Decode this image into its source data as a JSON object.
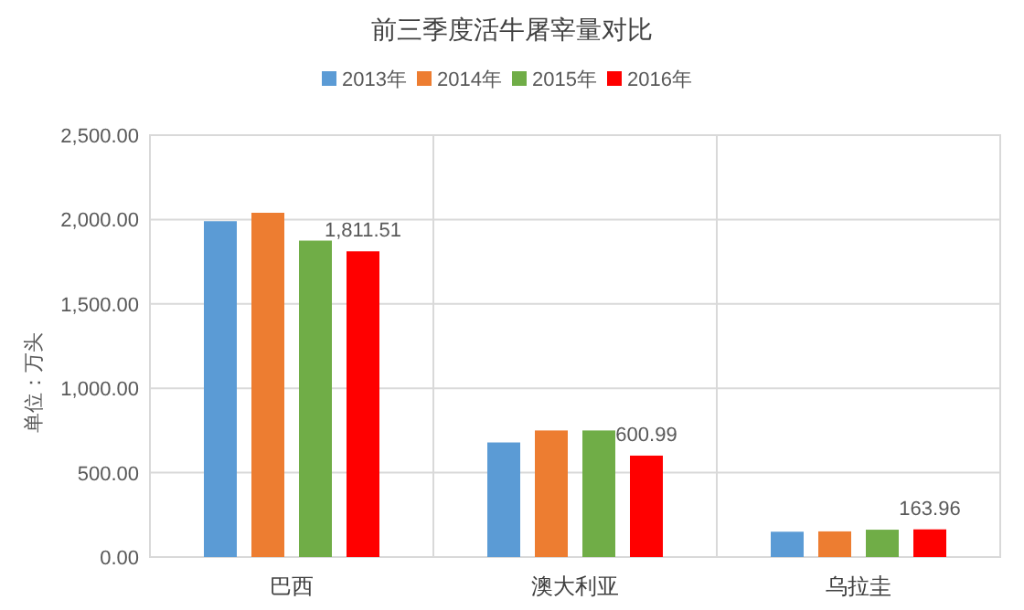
{
  "chart_data": {
    "type": "bar",
    "title": "前三季度活牛屠宰量对比",
    "ylabel": "单位：万头",
    "categories": [
      "巴西",
      "澳大利亚",
      "乌拉圭"
    ],
    "series": [
      {
        "name": "2013年",
        "color": "#5b9bd5",
        "values": [
          1990,
          679,
          150
        ]
      },
      {
        "name": "2014年",
        "color": "#ed7d31",
        "values": [
          2040,
          750,
          152
        ]
      },
      {
        "name": "2015年",
        "color": "#70ad47",
        "values": [
          1875,
          750,
          162
        ]
      },
      {
        "name": "2016年",
        "color": "#ff0000",
        "values": [
          1811.51,
          600.99,
          163.96
        ],
        "value_labels": [
          "1,811.51",
          "600.99",
          "163.96"
        ]
      }
    ],
    "ylim": [
      0,
      2500
    ],
    "yticks": [
      {
        "value": 0,
        "label": "0.00"
      },
      {
        "value": 500,
        "label": "500.00"
      },
      {
        "value": 1000,
        "label": "1,000.00"
      },
      {
        "value": 1500,
        "label": "1,500.00"
      },
      {
        "value": 2000,
        "label": "2,000.00"
      },
      {
        "value": 2500,
        "label": "2,500.00"
      }
    ],
    "grid": true,
    "legend": "top"
  }
}
